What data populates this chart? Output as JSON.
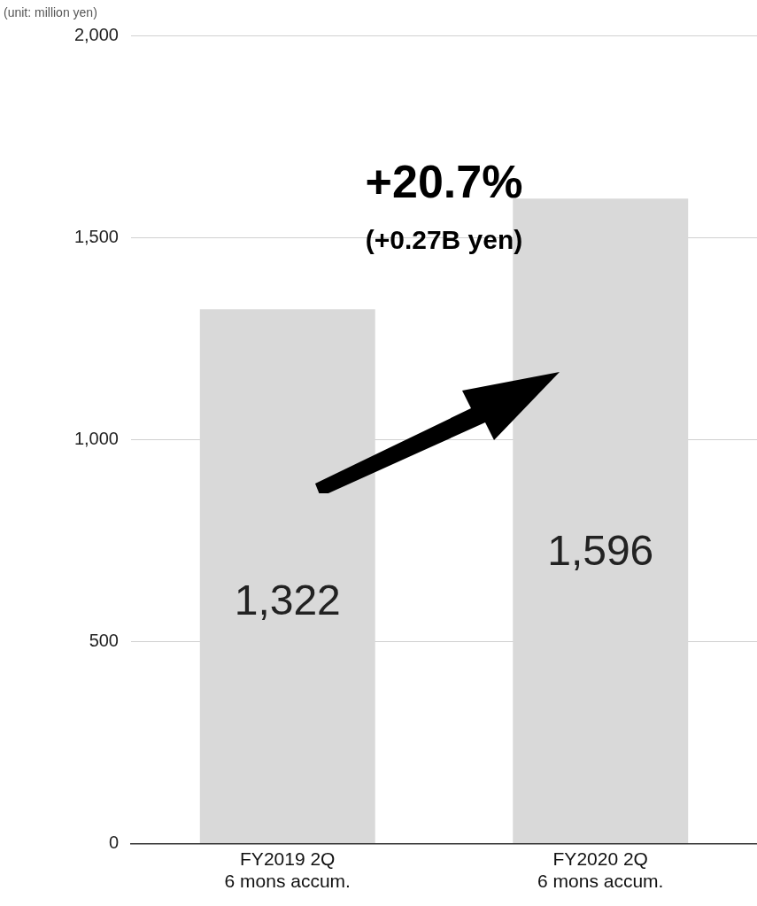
{
  "chart_data": {
    "type": "bar",
    "ylabel": "(unit: million yen)",
    "categories": [
      "FY2019 2Q\n6 mons accum.",
      "FY2020 2Q\n6 mons accum."
    ],
    "values": [
      1322,
      1596
    ],
    "color": "#d9d9d9",
    "ylim": [
      0,
      2000
    ],
    "yticks": [
      {
        "value": 0,
        "label": "0"
      },
      {
        "value": 500,
        "label": "500"
      },
      {
        "value": 1000,
        "label": "1,000"
      },
      {
        "value": 1500,
        "label": "1,500"
      },
      {
        "value": 2000,
        "label": "2,000"
      }
    ],
    "value_labels": [
      "1,322",
      "1,596"
    ],
    "annotations": [
      "+20.7%",
      "(+0.27B yen)"
    ],
    "grid": "y",
    "legend": false
  }
}
